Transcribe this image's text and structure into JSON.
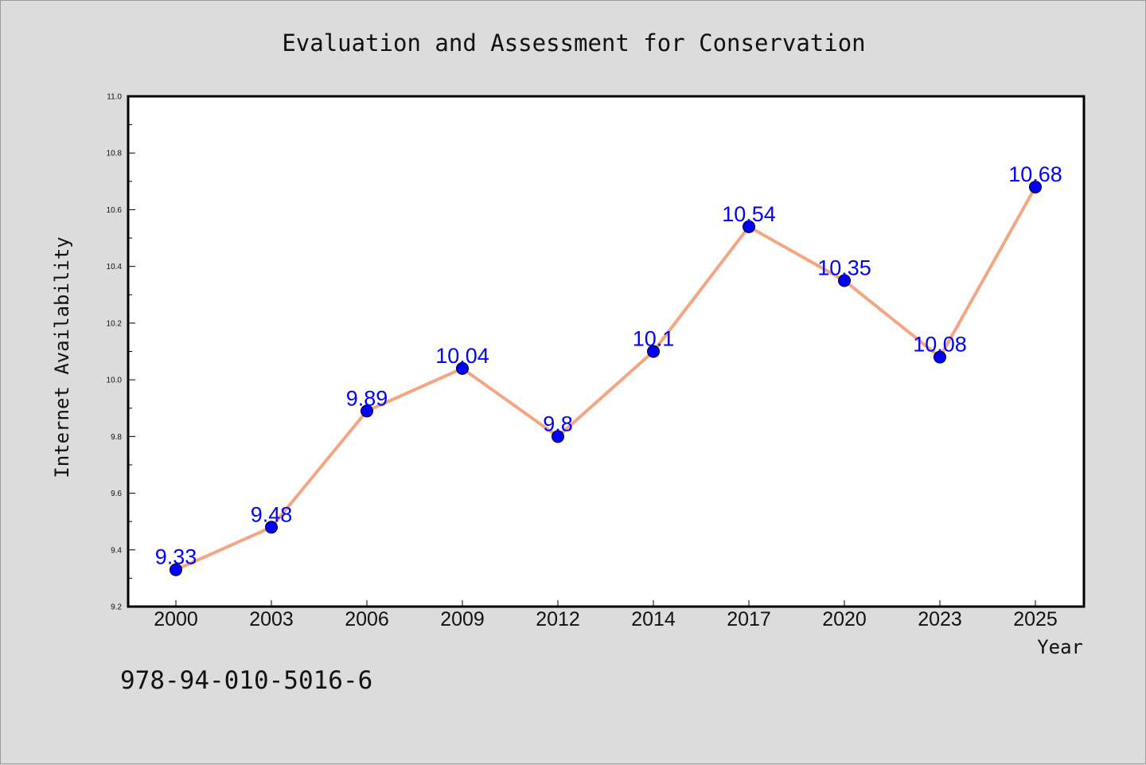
{
  "chart_data": {
    "type": "line",
    "title": "Evaluation and Assessment for Conservation",
    "xlabel": "Year",
    "ylabel": "Internet Availability",
    "categories": [
      "2000",
      "2003",
      "2006",
      "2009",
      "2012",
      "2014",
      "2017",
      "2020",
      "2023",
      "2025"
    ],
    "series": [
      {
        "values": [
          9.33,
          9.48,
          9.89,
          10.04,
          9.8,
          10.1,
          10.54,
          10.35,
          10.08,
          10.68
        ],
        "labels": [
          "9.33",
          "9.48",
          "9.89",
          "10.04",
          "9.8",
          "10.1",
          "10.54",
          "10.35",
          "10.08",
          "10.68"
        ],
        "line_color": "#f4a582",
        "marker_color": "#0000ff"
      }
    ],
    "ylim": [
      9.2,
      11.0
    ],
    "yticks": [
      "9.2",
      "9.4",
      "9.6",
      "9.8",
      "10.0",
      "10.2",
      "10.4",
      "10.6",
      "10.8",
      "11.0"
    ],
    "grid": false,
    "legend": "none"
  },
  "footer": {
    "isbn": "978-94-010-5016-6"
  },
  "colors": {
    "background": "#dcdcdc",
    "plot_background": "#ffffff",
    "data_label": "#0000ff"
  }
}
